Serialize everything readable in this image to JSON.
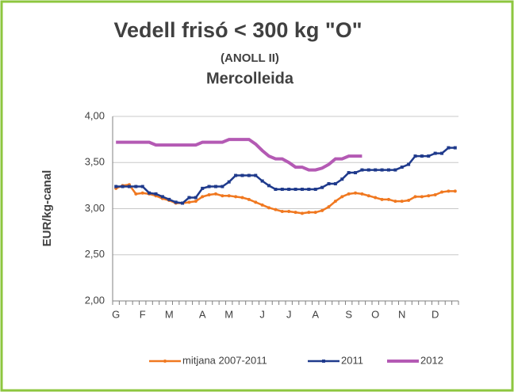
{
  "chart_data": {
    "type": "line",
    "title": "Vedell frisó < 300 kg \"O\"",
    "subtitle": "(ANOLL II)",
    "source": "Mercolleida",
    "y_label": "EUR/kg-canal",
    "categories": [
      "G",
      null,
      null,
      null,
      "F",
      null,
      null,
      null,
      "M",
      null,
      null,
      null,
      null,
      "A",
      null,
      null,
      null,
      "M",
      null,
      null,
      null,
      null,
      "J",
      null,
      null,
      null,
      "J",
      null,
      null,
      null,
      "A",
      null,
      null,
      null,
      null,
      "S",
      null,
      null,
      null,
      "O",
      null,
      null,
      null,
      "N",
      null,
      null,
      null,
      null,
      "D",
      null,
      null,
      null
    ],
    "ylim": [
      2,
      4
    ],
    "yticks": [
      {
        "value": 2,
        "label": "2,00"
      },
      {
        "value": 2.5,
        "label": "2,50"
      },
      {
        "value": 3,
        "label": "3,00"
      },
      {
        "value": 3.5,
        "label": "3,50"
      },
      {
        "value": 4,
        "label": "4,00"
      }
    ],
    "grid": true,
    "legend": "bottom",
    "series": [
      {
        "name": "mitjana 2007-2011",
        "color": "#f07820",
        "marker": "circle",
        "values": [
          3.22,
          3.25,
          3.26,
          3.16,
          3.17,
          3.16,
          3.14,
          3.11,
          3.09,
          3.06,
          3.06,
          3.07,
          3.08,
          3.13,
          3.15,
          3.16,
          3.14,
          3.14,
          3.13,
          3.12,
          3.1,
          3.07,
          3.04,
          3.01,
          2.99,
          2.97,
          2.97,
          2.96,
          2.95,
          2.96,
          2.96,
          2.98,
          3.02,
          3.08,
          3.13,
          3.16,
          3.17,
          3.16,
          3.14,
          3.12,
          3.1,
          3.1,
          3.08,
          3.08,
          3.09,
          3.13,
          3.13,
          3.14,
          3.15,
          3.18,
          3.19,
          3.19
        ]
      },
      {
        "name": "2011",
        "color": "#1f3a8c",
        "marker": "square",
        "values": [
          3.24,
          3.24,
          3.24,
          3.24,
          3.24,
          3.17,
          3.16,
          3.13,
          3.1,
          3.07,
          3.06,
          3.12,
          3.12,
          3.22,
          3.24,
          3.24,
          3.24,
          3.29,
          3.36,
          3.36,
          3.36,
          3.36,
          3.3,
          3.25,
          3.21,
          3.21,
          3.21,
          3.21,
          3.21,
          3.21,
          3.21,
          3.23,
          3.27,
          3.27,
          3.32,
          3.39,
          3.39,
          3.42,
          3.42,
          3.42,
          3.42,
          3.42,
          3.42,
          3.45,
          3.48,
          3.57,
          3.57,
          3.57,
          3.6,
          3.6,
          3.66,
          3.66
        ]
      },
      {
        "name": "2012",
        "color": "#b45ab4",
        "marker": "none",
        "values": [
          3.72,
          3.72,
          3.72,
          3.72,
          3.72,
          3.72,
          3.69,
          3.69,
          3.69,
          3.69,
          3.69,
          3.69,
          3.69,
          3.72,
          3.72,
          3.72,
          3.72,
          3.75,
          3.75,
          3.75,
          3.75,
          3.7,
          3.63,
          3.57,
          3.54,
          3.54,
          3.5,
          3.45,
          3.45,
          3.42,
          3.42,
          3.44,
          3.48,
          3.54,
          3.54,
          3.57,
          3.57,
          3.57,
          null,
          null,
          null,
          null,
          null,
          null,
          null,
          null,
          null,
          null,
          null,
          null,
          null,
          null
        ]
      }
    ]
  }
}
